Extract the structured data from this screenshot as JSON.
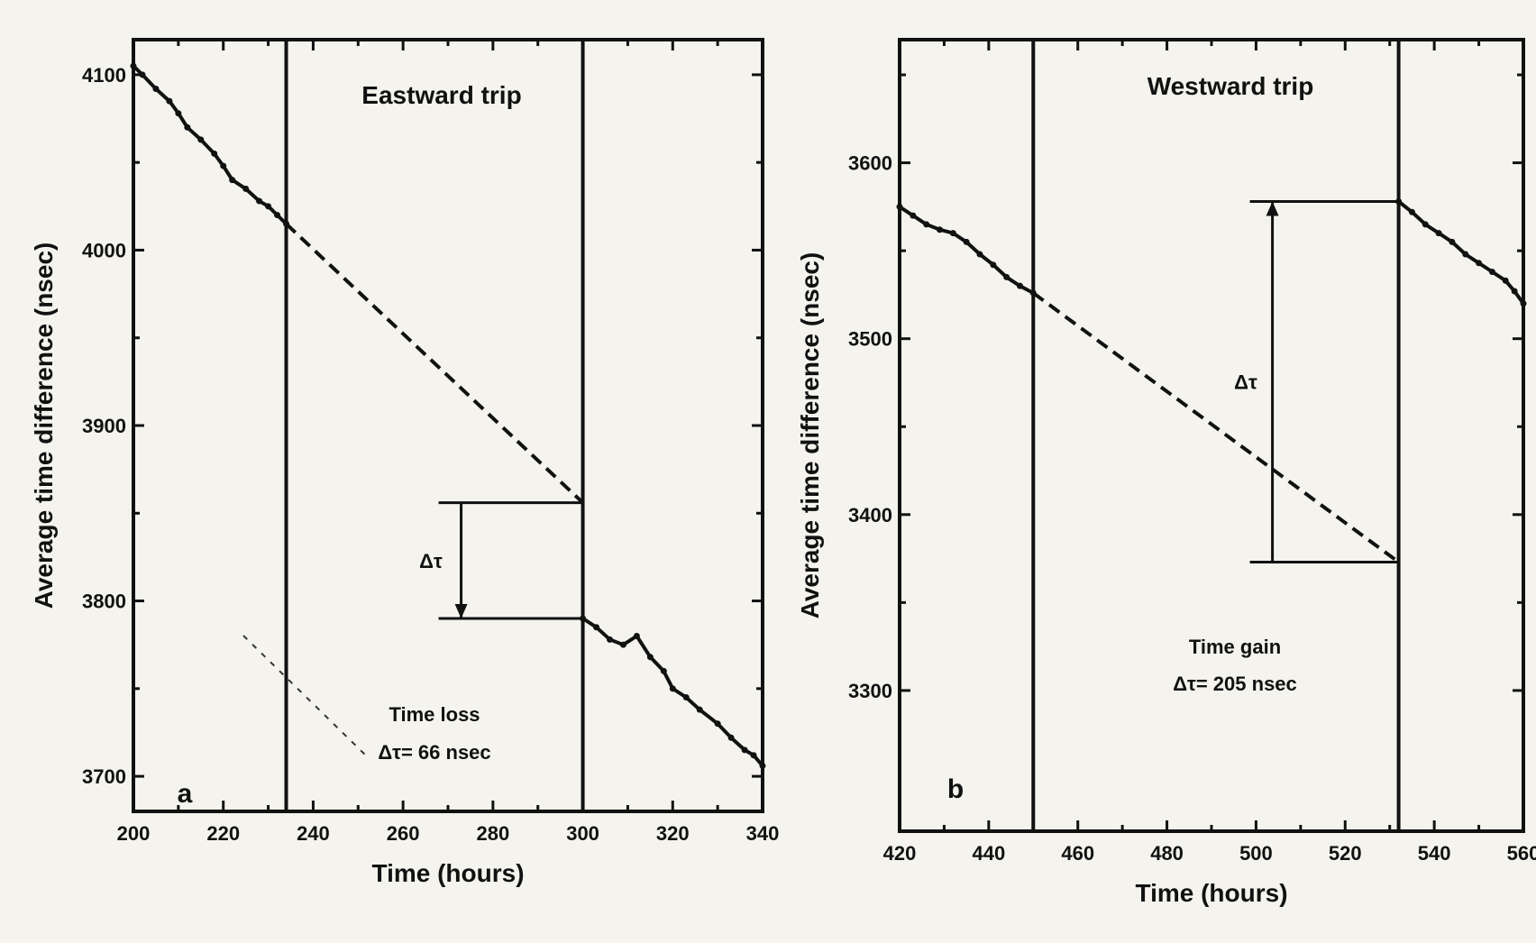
{
  "chart_data": [
    {
      "type": "line",
      "panel_letter": "a",
      "title": "Eastward trip",
      "xlabel": "Time (hours)",
      "ylabel": "Average time difference (nsec)",
      "xlim": [
        200,
        340
      ],
      "ylim": [
        3680,
        4120
      ],
      "xticks": [
        200,
        220,
        240,
        260,
        280,
        300,
        320,
        340
      ],
      "yticks": [
        3700,
        3800,
        3900,
        4000,
        4100
      ],
      "trip_boundaries": [
        234,
        300
      ],
      "series": [
        {
          "kind": "measured",
          "x": [
            200,
            202,
            205,
            208,
            210,
            212,
            215,
            218,
            220,
            222,
            225,
            228,
            230,
            232,
            234
          ],
          "y": [
            4105,
            4100,
            4092,
            4085,
            4078,
            4070,
            4063,
            4055,
            4048,
            4040,
            4035,
            4028,
            4025,
            4020,
            4015
          ]
        },
        {
          "kind": "extrapolated",
          "x": [
            234,
            300
          ],
          "y": [
            4015,
            3856
          ]
        },
        {
          "kind": "measured",
          "x": [
            300,
            303,
            306,
            309,
            312,
            315,
            318,
            320,
            323,
            326,
            330,
            333,
            336,
            338,
            340
          ],
          "y": [
            3790,
            3785,
            3778,
            3775,
            3780,
            3768,
            3760,
            3750,
            3745,
            3738,
            3730,
            3722,
            3715,
            3712,
            3706
          ]
        }
      ],
      "delta_bracket": {
        "x": 300,
        "from": 3856,
        "to": 3790
      },
      "annotations": {
        "delta_symbol": "Δτ",
        "result_line1": "Time loss",
        "result_line2": "Δτ= 66 nsec"
      }
    },
    {
      "type": "line",
      "panel_letter": "b",
      "title": "Westward trip",
      "xlabel": "Time (hours)",
      "ylabel": "Average time difference (nsec)",
      "xlim": [
        420,
        560
      ],
      "ylim": [
        3220,
        3670
      ],
      "xticks": [
        420,
        440,
        460,
        480,
        500,
        520,
        540,
        560
      ],
      "yticks": [
        3300,
        3400,
        3500,
        3600
      ],
      "trip_boundaries": [
        450,
        532
      ],
      "series": [
        {
          "kind": "measured",
          "x": [
            420,
            423,
            426,
            429,
            432,
            435,
            438,
            441,
            444,
            447,
            450
          ],
          "y": [
            3575,
            3570,
            3565,
            3562,
            3560,
            3555,
            3548,
            3542,
            3535,
            3530,
            3526
          ]
        },
        {
          "kind": "extrapolated",
          "x": [
            450,
            532
          ],
          "y": [
            3526,
            3373
          ]
        },
        {
          "kind": "measured",
          "x": [
            532,
            535,
            538,
            541,
            544,
            547,
            550,
            553,
            556,
            558,
            560
          ],
          "y": [
            3578,
            3572,
            3565,
            3560,
            3555,
            3548,
            3543,
            3538,
            3533,
            3527,
            3520
          ]
        }
      ],
      "delta_bracket": {
        "x": 532,
        "from": 3373,
        "to": 3578
      },
      "annotations": {
        "delta_symbol": "Δτ",
        "result_line1": "Time gain",
        "result_line2": "Δτ= 205 nsec"
      }
    }
  ]
}
